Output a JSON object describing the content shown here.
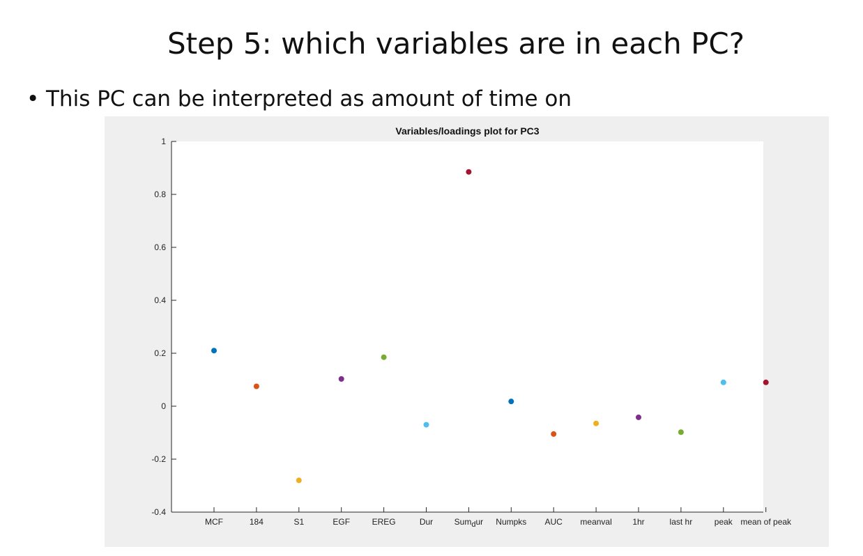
{
  "slide": {
    "title": "Step 5: which variables are in each PC?",
    "bullet_marker": "•",
    "bullet_text": "This PC can be interpreted as amount of time on"
  },
  "chart_data": {
    "type": "scatter",
    "title": "Variables/loadings plot for PC3",
    "xlabel": "",
    "ylabel": "",
    "ylim": [
      -0.4,
      1
    ],
    "yticks": [
      -0.4,
      -0.2,
      0,
      0.2,
      0.4,
      0.6,
      0.8,
      1
    ],
    "ytick_labels": [
      "-0.4",
      "-0.2",
      "0",
      "0.2",
      "0.4",
      "0.6",
      "0.8",
      "1"
    ],
    "categories": [
      "MCF",
      "184",
      "S1",
      "EGF",
      "EREG",
      "Dur",
      "Sum_dur",
      "Numpks",
      "AUC",
      "meanval",
      "1hr",
      "last hr",
      "peak",
      "mean of peak"
    ],
    "values": [
      0.21,
      0.075,
      -0.28,
      0.103,
      0.185,
      -0.07,
      0.885,
      0.018,
      -0.105,
      -0.065,
      -0.042,
      -0.098,
      0.09,
      0.09
    ],
    "colors": [
      "#0072BD",
      "#D95319",
      "#EDB120",
      "#7E2F8E",
      "#77AC30",
      "#4DBEEE",
      "#A2142F",
      "#0072BD",
      "#D95319",
      "#EDB120",
      "#7E2F8E",
      "#77AC30",
      "#4DBEEE",
      "#A2142F"
    ],
    "grid": false,
    "legend": "none"
  }
}
